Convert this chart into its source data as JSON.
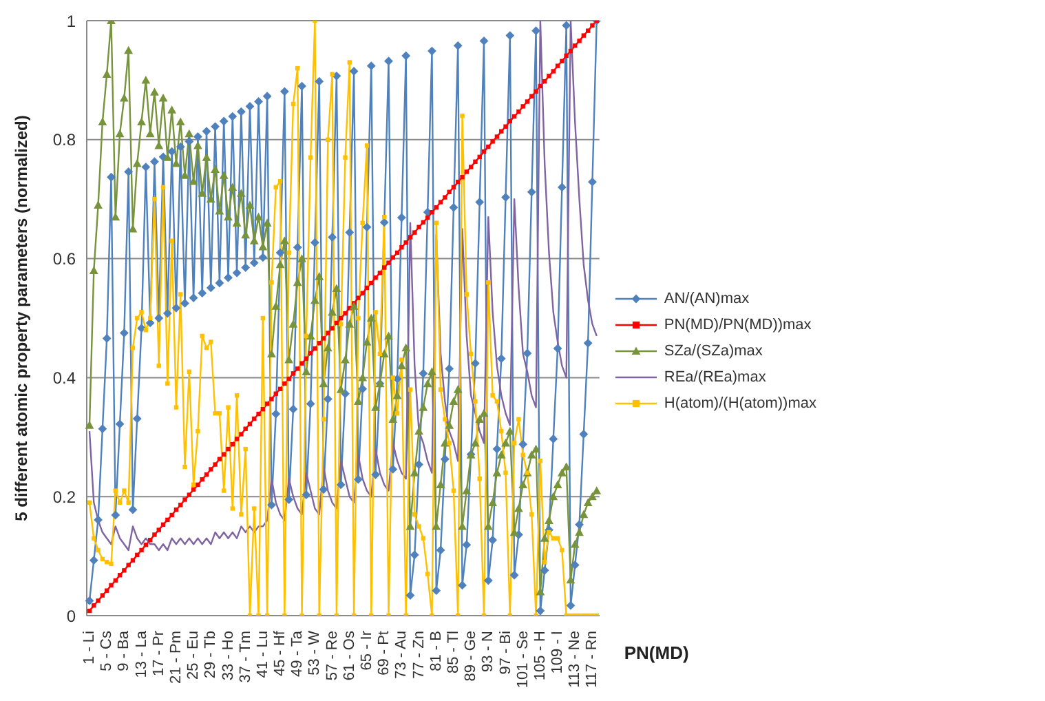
{
  "chart_data": {
    "type": "line",
    "ylabel": "5 different atomic property parameters (normalized)",
    "xlabel": "PN(MD)",
    "categories": [
      "1 - Li",
      null,
      null,
      null,
      "5 - Cs",
      null,
      null,
      null,
      "9 - Ba",
      null,
      null,
      null,
      "13 - La",
      null,
      null,
      null,
      "17 - Pr",
      null,
      null,
      null,
      "21 - Pm",
      null,
      null,
      null,
      "25 - Eu",
      null,
      null,
      null,
      "29 - Tb",
      null,
      null,
      null,
      "33 - Ho",
      null,
      null,
      null,
      "37 - Tm",
      null,
      null,
      null,
      "41 - Lu",
      null,
      null,
      null,
      "45 - Hf",
      null,
      null,
      null,
      "49 - Ta",
      null,
      null,
      null,
      "53 - W",
      null,
      null,
      null,
      "57 - Re",
      null,
      null,
      null,
      "61 - Os",
      null,
      null,
      null,
      "65 - Ir",
      null,
      null,
      null,
      "69 - Pt",
      null,
      null,
      null,
      "73 - Au",
      null,
      null,
      null,
      "77 - Zn",
      null,
      null,
      null,
      "81 - B",
      null,
      null,
      null,
      "85 - Tl",
      null,
      null,
      null,
      "89 - Ge",
      null,
      null,
      null,
      "93 - N",
      null,
      null,
      null,
      "97 - Bi",
      null,
      null,
      null,
      "101 - Se",
      null,
      null,
      null,
      "105 - H",
      null,
      null,
      null,
      "109 - I",
      null,
      null,
      null,
      "113 - Ne",
      null,
      null,
      null,
      "117 - Rn",
      null
    ],
    "series": [
      {
        "name": "AN/(AN)max",
        "color": "#4f81bd",
        "marker": "diamond",
        "values": [
          0.025,
          0.093,
          0.161,
          0.314,
          0.466,
          0.737,
          0.169,
          0.322,
          0.475,
          0.746,
          0.178,
          0.331,
          0.483,
          0.754,
          0.492,
          0.763,
          0.5,
          0.771,
          0.508,
          0.78,
          0.517,
          0.788,
          0.525,
          0.797,
          0.534,
          0.805,
          0.542,
          0.814,
          0.551,
          0.822,
          0.559,
          0.831,
          0.568,
          0.839,
          0.576,
          0.847,
          0.585,
          0.856,
          0.593,
          0.864,
          0.602,
          0.873,
          0.186,
          0.339,
          0.61,
          0.881,
          0.195,
          0.347,
          0.619,
          0.89,
          0.203,
          0.356,
          0.627,
          0.898,
          0.212,
          0.364,
          0.636,
          0.907,
          0.22,
          0.373,
          0.644,
          0.915,
          0.229,
          0.381,
          0.653,
          0.924,
          0.237,
          0.39,
          0.661,
          0.932,
          0.246,
          0.398,
          0.669,
          0.941,
          0.034,
          0.102,
          0.254,
          0.407,
          0.678,
          0.949,
          0.042,
          0.11,
          0.263,
          0.415,
          0.686,
          0.958,
          0.051,
          0.119,
          0.271,
          0.424,
          0.695,
          0.966,
          0.059,
          0.127,
          0.28,
          0.432,
          0.703,
          0.975,
          0.068,
          0.136,
          0.288,
          0.441,
          0.712,
          0.983,
          0.008,
          0.076,
          0.144,
          0.297,
          0.449,
          0.72,
          0.992,
          0.017,
          0.085,
          0.153,
          0.305,
          0.458,
          0.729,
          1
        ]
      },
      {
        "name": "PN(MD)/PN(MD))max",
        "color": "#ff0000",
        "marker": "square",
        "values": [
          0.008,
          0.017,
          0.025,
          0.034,
          0.042,
          0.051,
          0.059,
          0.068,
          0.076,
          0.085,
          0.093,
          0.102,
          0.11,
          0.119,
          0.127,
          0.136,
          0.144,
          0.153,
          0.161,
          0.169,
          0.178,
          0.186,
          0.195,
          0.203,
          0.212,
          0.22,
          0.229,
          0.237,
          0.246,
          0.254,
          0.263,
          0.271,
          0.28,
          0.288,
          0.297,
          0.305,
          0.314,
          0.322,
          0.331,
          0.339,
          0.347,
          0.356,
          0.364,
          0.373,
          0.381,
          0.39,
          0.398,
          0.407,
          0.415,
          0.424,
          0.432,
          0.441,
          0.449,
          0.458,
          0.466,
          0.475,
          0.483,
          0.492,
          0.5,
          0.508,
          0.517,
          0.525,
          0.534,
          0.542,
          0.551,
          0.559,
          0.568,
          0.576,
          0.585,
          0.593,
          0.602,
          0.61,
          0.619,
          0.627,
          0.636,
          0.644,
          0.653,
          0.661,
          0.669,
          0.678,
          0.686,
          0.695,
          0.703,
          0.712,
          0.72,
          0.729,
          0.737,
          0.746,
          0.754,
          0.763,
          0.771,
          0.78,
          0.788,
          0.797,
          0.805,
          0.814,
          0.822,
          0.831,
          0.839,
          0.847,
          0.856,
          0.864,
          0.873,
          0.881,
          0.89,
          0.898,
          0.907,
          0.915,
          0.924,
          0.932,
          0.941,
          0.949,
          0.958,
          0.966,
          0.975,
          0.983,
          0.992,
          1
        ]
      },
      {
        "name": "SZa/(SZa)max",
        "color": "#77933c",
        "marker": "triangle",
        "values": [
          0.32,
          0.58,
          0.69,
          0.83,
          0.91,
          1,
          0.67,
          0.81,
          0.87,
          0.95,
          0.65,
          0.76,
          0.83,
          0.9,
          0.81,
          0.88,
          0.79,
          0.87,
          0.77,
          0.85,
          0.76,
          0.83,
          0.74,
          0.81,
          0.73,
          0.79,
          0.71,
          0.77,
          0.7,
          0.75,
          0.68,
          0.74,
          0.67,
          0.72,
          0.66,
          0.71,
          0.64,
          0.69,
          0.63,
          0.67,
          0.62,
          0.66,
          0.44,
          0.52,
          0.59,
          0.63,
          0.43,
          0.49,
          0.56,
          0.6,
          0.41,
          0.47,
          0.53,
          0.57,
          0.39,
          0.45,
          0.51,
          0.55,
          0.38,
          0.43,
          0.49,
          0.52,
          0.36,
          0.4,
          0.46,
          0.5,
          0.35,
          0.39,
          0.44,
          0.47,
          0.33,
          0.37,
          0.42,
          0.45,
          0.15,
          0.24,
          0.31,
          0.35,
          0.39,
          0.41,
          0.15,
          0.22,
          0.29,
          0.32,
          0.36,
          0.38,
          0.15,
          0.21,
          0.27,
          0.29,
          0.33,
          0.34,
          0.15,
          0.19,
          0.24,
          0.27,
          0.29,
          0.31,
          0.14,
          0.18,
          0.22,
          0.24,
          0.27,
          0.28,
          0.04,
          0.13,
          0.16,
          0.2,
          0.22,
          0.24,
          0.25,
          0.06,
          0.12,
          0.14,
          0.17,
          0.19,
          0.2,
          0.21
        ]
      },
      {
        "name": "REa/(REa)max",
        "color": "#8064a2",
        "marker": "none",
        "values": [
          0.31,
          0.19,
          0.16,
          0.14,
          0.13,
          0.12,
          0.15,
          0.13,
          0.12,
          0.11,
          0.15,
          0.13,
          0.12,
          0.13,
          0.12,
          0.12,
          0.11,
          0.12,
          0.11,
          0.13,
          0.12,
          0.13,
          0.12,
          0.13,
          0.12,
          0.13,
          0.12,
          0.13,
          0.12,
          0.14,
          0.13,
          0.14,
          0.13,
          0.14,
          0.13,
          0.15,
          0.14,
          0.15,
          0.14,
          0.15,
          0.15,
          0.16,
          0.23,
          0.19,
          0.17,
          0.16,
          0.23,
          0.2,
          0.18,
          0.17,
          0.24,
          0.21,
          0.18,
          0.17,
          0.25,
          0.21,
          0.19,
          0.18,
          0.26,
          0.23,
          0.2,
          0.19,
          0.27,
          0.23,
          0.21,
          0.2,
          0.28,
          0.24,
          0.22,
          0.21,
          0.29,
          0.26,
          0.24,
          0.23,
          0.66,
          0.42,
          0.31,
          0.29,
          0.26,
          0.24,
          0.64,
          0.44,
          0.36,
          0.31,
          0.29,
          0.26,
          0.65,
          0.47,
          0.37,
          0.34,
          0.31,
          0.29,
          0.67,
          0.51,
          0.42,
          0.37,
          0.34,
          0.32,
          0.7,
          0.55,
          0.44,
          0.41,
          0.37,
          0.35,
          1,
          0.76,
          0.61,
          0.51,
          0.46,
          0.42,
          0.4,
          1,
          0.83,
          0.7,
          0.59,
          0.53,
          0.49,
          0.47
        ]
      },
      {
        "name": "H(atom)/(H(atom))max",
        "color": "#ffc000",
        "marker": "square",
        "values": [
          0.19,
          0.13,
          0.11,
          0.095,
          0.09,
          0.087,
          0.21,
          0.19,
          0.21,
          0.19,
          0.45,
          0.5,
          0.51,
          0.48,
          0.5,
          0.7,
          0.42,
          0.72,
          0.39,
          0.63,
          0.35,
          0.54,
          0.25,
          0.41,
          0.22,
          0.31,
          0.47,
          0.45,
          0.46,
          0.34,
          0.34,
          0.21,
          0.35,
          0.18,
          0.37,
          0.17,
          0.28,
          0,
          0.18,
          0,
          0.5,
          0,
          0.56,
          0.72,
          0.73,
          0,
          0.61,
          0.86,
          0.92,
          0,
          0.47,
          0.77,
          1,
          0,
          0.33,
          0.8,
          0.91,
          0,
          0.49,
          0.77,
          0.93,
          0,
          0.5,
          0.66,
          0.79,
          0,
          0.51,
          0.44,
          0.67,
          0,
          0.4,
          0.34,
          0.43,
          0,
          0.38,
          0.17,
          0.15,
          0.13,
          0.07,
          0,
          0.66,
          0.38,
          0.33,
          0.29,
          0.21,
          0,
          0.84,
          0.54,
          0.44,
          0.36,
          0.23,
          0,
          0.56,
          0.37,
          0.36,
          0.31,
          0.24,
          0,
          0.29,
          0.33,
          0.27,
          0.24,
          0.17,
          0,
          0.26,
          0.09,
          0.14,
          0.13,
          0.13,
          0.11,
          0,
          0,
          0,
          0,
          0,
          0,
          0,
          0
        ]
      }
    ],
    "ylim": [
      0,
      1
    ],
    "yticks": [
      0,
      0.2,
      0.4,
      0.6,
      0.8,
      1
    ],
    "grid": "y",
    "legend": "right"
  }
}
